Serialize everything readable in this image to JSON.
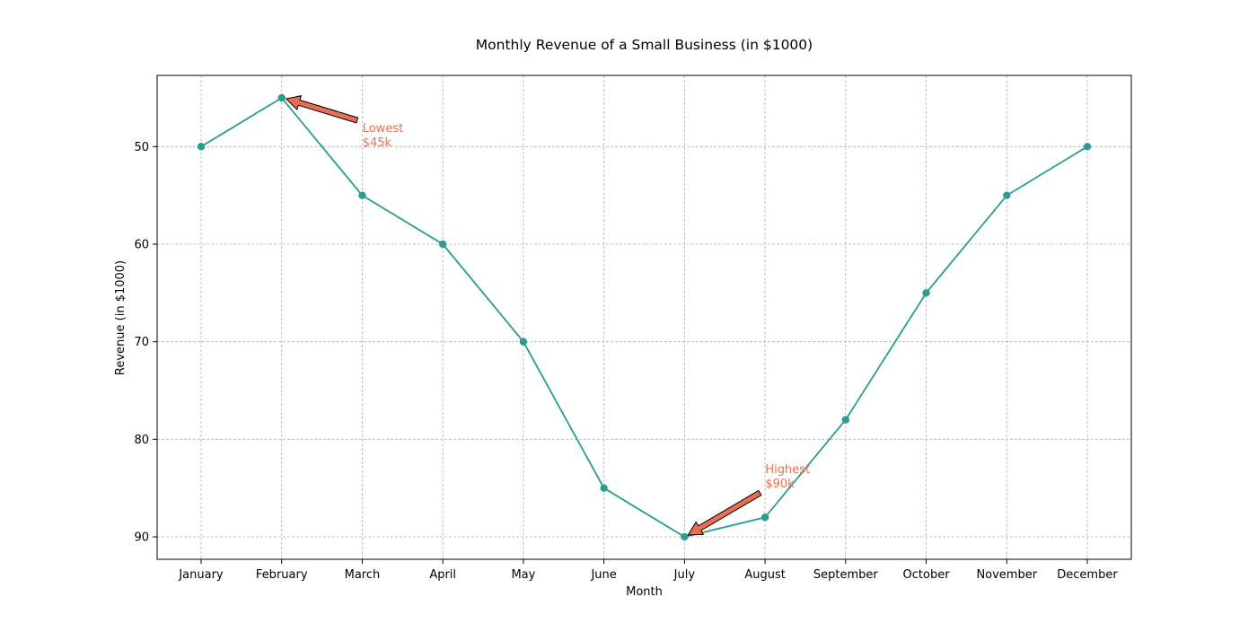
{
  "chart_data": {
    "type": "line",
    "title": "Monthly Revenue of a Small Business (in $1000)",
    "xlabel": "Month",
    "ylabel": "Revenue (in $1000)",
    "categories": [
      "January",
      "February",
      "March",
      "April",
      "May",
      "June",
      "July",
      "August",
      "September",
      "October",
      "November",
      "December"
    ],
    "series": [
      {
        "values": [
          50,
          45,
          55,
          60,
          70,
          85,
          90,
          88,
          78,
          65,
          55,
          50
        ],
        "color": "#2a9d8f",
        "marker": "circle"
      }
    ],
    "ylim": [
      92.3,
      42.7
    ],
    "y_inverted": true,
    "yticks": [
      50,
      60,
      70,
      80,
      90
    ],
    "grid": true,
    "annotations": [
      {
        "text_line1": "Lowest",
        "text_line2": "$45k",
        "point_category": "February",
        "point_value": 45,
        "color": "#e76f51"
      },
      {
        "text_line1": "Highest",
        "text_line2": "$90k",
        "point_category": "July",
        "point_value": 90,
        "color": "#e76f51"
      }
    ]
  }
}
